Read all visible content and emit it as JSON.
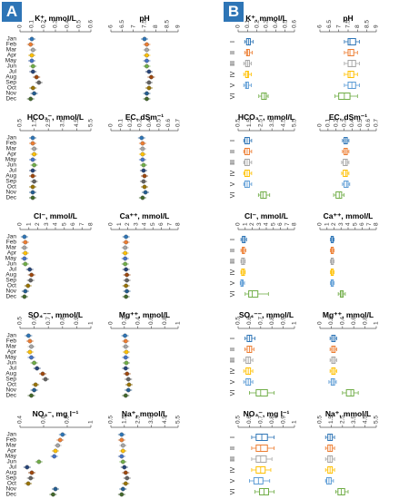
{
  "panel_letters": [
    "A",
    "B"
  ],
  "colors": {
    "accent": "#2e75b6",
    "month_palette": [
      "#2e75b6",
      "#ed7d31",
      "#a5a5a5",
      "#ffc000",
      "#4472c4",
      "#70ad47",
      "#264478",
      "#9e480e",
      "#636363",
      "#997300",
      "#255e91",
      "#43682b"
    ],
    "group_palette": [
      "#2e75b6",
      "#ed7d31",
      "#a5a5a5",
      "#ffc000",
      "#5b9bd5",
      "#70ad47"
    ]
  },
  "chart_data": [
    {
      "panel": "A",
      "type": "scatter",
      "layout": "5x2 grid",
      "row_labels": [
        "Jan",
        "Feb",
        "Mar",
        "Apr",
        "May",
        "Jun",
        "Jul",
        "Aug",
        "Sep",
        "Oct",
        "Nov",
        "Dec"
      ],
      "subplots": [
        {
          "title": "K⁺, mmol/L",
          "ticks": [
            "0",
            "0.1",
            "0.2",
            "0.3",
            "0.4",
            "0.5",
            "0.6"
          ],
          "xlim": [
            0,
            0.6
          ],
          "values": [
            0.1,
            0.09,
            0.11,
            0.1,
            0.1,
            0.11,
            0.11,
            0.14,
            0.16,
            0.11,
            0.12,
            0.09
          ]
        },
        {
          "title": "pH",
          "ticks": [
            "6",
            "6.5",
            "7",
            "7.5",
            "8",
            "8.5",
            "9"
          ],
          "xlim": [
            6,
            9
          ],
          "values": [
            7.5,
            7.6,
            7.6,
            7.6,
            7.6,
            7.6,
            7.7,
            7.8,
            7.7,
            7.7,
            7.6,
            7.6
          ]
        },
        {
          "title": "HCO₃⁻, mmol/L",
          "ticks": [
            "0.5",
            "1.5",
            "2.5",
            "3.5",
            "4.5",
            "5.5"
          ],
          "xlim": [
            0.5,
            5.5
          ],
          "values": [
            1.4,
            1.4,
            1.5,
            1.5,
            1.4,
            1.5,
            1.4,
            1.4,
            1.5,
            1.4,
            1.4,
            1.4
          ]
        },
        {
          "title": "EC, dSm⁻¹",
          "ticks": [
            "0",
            "0.1",
            "0.2",
            "0.3",
            "0.4",
            "0.5",
            "0.6",
            "0.7"
          ],
          "xlim": [
            0,
            0.7
          ],
          "values": [
            0.32,
            0.33,
            0.33,
            0.33,
            0.33,
            0.34,
            0.34,
            0.35,
            0.34,
            0.35,
            0.36,
            0.33
          ]
        },
        {
          "title": "Cl⁻, mmol/L",
          "ticks": [
            "0",
            "1",
            "2",
            "3",
            "4",
            "5",
            "6",
            "7",
            "8"
          ],
          "xlim": [
            0,
            8
          ],
          "values": [
            0.5,
            0.6,
            0.5,
            0.6,
            0.5,
            0.6,
            1.1,
            1.3,
            1.2,
            0.9,
            0.6,
            0.5
          ]
        },
        {
          "title": "Ca⁺⁺, mmol/L",
          "ticks": [
            "0",
            "1",
            "2",
            "3",
            "4",
            "5",
            "6",
            "7",
            "8"
          ],
          "xlim": [
            0,
            8
          ],
          "values": [
            1.8,
            1.8,
            1.7,
            1.7,
            1.7,
            1.7,
            1.8,
            1.9,
            1.9,
            1.8,
            1.9,
            1.8
          ]
        },
        {
          "title": "SO₄⁻⁻, mmol/L",
          "ticks": [
            "0.5",
            "0.6",
            "0.7",
            "0.8",
            "0.9",
            "1"
          ],
          "xlim": [
            0.5,
            1.0
          ],
          "values": [
            0.56,
            0.57,
            0.58,
            0.57,
            0.58,
            0.6,
            0.62,
            0.66,
            0.68,
            0.61,
            0.6,
            0.58
          ]
        },
        {
          "title": "Mg⁺⁺, mmol/L",
          "ticks": [
            "0",
            "0.2",
            "0.4",
            "0.6",
            "0.8",
            "1"
          ],
          "xlim": [
            0,
            1
          ],
          "values": [
            0.21,
            0.22,
            0.22,
            0.23,
            0.22,
            0.23,
            0.22,
            0.24,
            0.26,
            0.27,
            0.26,
            0.22
          ]
        },
        {
          "title": "NO₃⁻, mg l⁻¹",
          "ticks": [
            "0.4",
            "0.6",
            "0.8",
            "1"
          ],
          "xlim": [
            0.4,
            1.0
          ],
          "values": [
            0.76,
            0.74,
            0.72,
            0.7,
            0.69,
            0.56,
            0.46,
            0.5,
            0.49,
            0.47,
            0.7,
            0.68
          ]
        },
        {
          "title": "Na⁺, mmol/L",
          "ticks": [
            "0.5",
            "1.5",
            "2.5",
            "3.5",
            "4.5",
            "5.5"
          ],
          "xlim": [
            0.5,
            5.5
          ],
          "values": [
            1.3,
            1.3,
            1.4,
            1.4,
            1.3,
            1.4,
            1.5,
            1.6,
            1.7,
            1.6,
            1.4,
            1.3
          ]
        }
      ]
    },
    {
      "panel": "B",
      "type": "boxplot",
      "layout": "5x2 grid",
      "row_labels": [
        "I",
        "II",
        "III",
        "IV",
        "V",
        "VI"
      ],
      "subplots": [
        {
          "title": "K⁺, mmol/L",
          "ticks": [
            "0",
            "0.1",
            "0.2",
            "0.3",
            "0.4",
            "0.5",
            "0.6"
          ],
          "xlim": [
            0,
            0.6
          ],
          "boxes": [
            [
              0.07,
              0.09,
              0.11,
              0.13,
              0.16
            ],
            [
              0.07,
              0.09,
              0.1,
              0.12,
              0.15
            ],
            [
              0.06,
              0.08,
              0.1,
              0.12,
              0.14
            ],
            [
              0.06,
              0.08,
              0.1,
              0.11,
              0.14
            ],
            [
              0.06,
              0.08,
              0.09,
              0.11,
              0.14
            ],
            [
              0.22,
              0.25,
              0.28,
              0.3,
              0.32
            ]
          ]
        },
        {
          "title": "pH",
          "ticks": [
            "6",
            "6.5",
            "7",
            "7.5",
            "8",
            "8.5",
            "9"
          ],
          "xlim": [
            6,
            9
          ],
          "boxes": [
            [
              7.3,
              7.5,
              7.6,
              7.9,
              8.1
            ],
            [
              7.3,
              7.5,
              7.6,
              7.8,
              8.0
            ],
            [
              7.3,
              7.5,
              7.7,
              7.9,
              8.1
            ],
            [
              7.3,
              7.5,
              7.6,
              7.8,
              8.0
            ],
            [
              7.3,
              7.5,
              7.7,
              7.9,
              8.1
            ],
            [
              6.8,
              7.0,
              7.3,
              7.6,
              8.0
            ]
          ]
        },
        {
          "title": "HCO₃⁻, mmol/L",
          "ticks": [
            "0.5",
            "1.5",
            "2.5",
            "3.5",
            "4.5",
            "5.5"
          ],
          "xlim": [
            0.5,
            5.5
          ],
          "boxes": [
            [
              1.0,
              1.1,
              1.3,
              1.5,
              1.7
            ],
            [
              1.0,
              1.1,
              1.3,
              1.5,
              1.7
            ],
            [
              1.0,
              1.1,
              1.3,
              1.5,
              1.7
            ],
            [
              1.0,
              1.1,
              1.3,
              1.5,
              1.7
            ],
            [
              1.0,
              1.1,
              1.3,
              1.5,
              1.7
            ],
            [
              2.3,
              2.5,
              2.7,
              3.0,
              3.3
            ]
          ]
        },
        {
          "title": "EC, dSm⁻¹",
          "ticks": [
            "0",
            "0.1",
            "0.2",
            "0.3",
            "0.4",
            "0.5",
            "0.6",
            "0.7"
          ],
          "xlim": [
            0,
            0.7
          ],
          "boxes": [
            [
              0.28,
              0.3,
              0.32,
              0.34,
              0.36
            ],
            [
              0.28,
              0.3,
              0.32,
              0.34,
              0.36
            ],
            [
              0.27,
              0.29,
              0.32,
              0.34,
              0.36
            ],
            [
              0.27,
              0.29,
              0.32,
              0.34,
              0.36
            ],
            [
              0.28,
              0.3,
              0.33,
              0.35,
              0.37
            ],
            [
              0.17,
              0.2,
              0.24,
              0.27,
              0.3
            ]
          ]
        },
        {
          "title": "Cl⁻, mmol/L",
          "ticks": [
            "0",
            "1",
            "2",
            "3",
            "4",
            "5",
            "6",
            "7",
            "8"
          ],
          "xlim": [
            0,
            8
          ],
          "boxes": [
            [
              0.4,
              0.6,
              0.8,
              1.0,
              1.2
            ],
            [
              0.4,
              0.6,
              0.7,
              0.9,
              1.1
            ],
            [
              0.4,
              0.5,
              0.7,
              0.9,
              1.0
            ],
            [
              0.4,
              0.5,
              0.7,
              0.9,
              1.0
            ],
            [
              0.3,
              0.4,
              0.6,
              0.7,
              0.9
            ],
            [
              1.0,
              1.5,
              2.0,
              2.8,
              4.3
            ]
          ]
        },
        {
          "title": "Ca⁺⁺, mmol/L",
          "ticks": [
            "0",
            "1",
            "2",
            "3",
            "4",
            "5",
            "6",
            "7",
            "8"
          ],
          "xlim": [
            0,
            8
          ],
          "boxes": [
            [
              1.5,
              1.6,
              1.8,
              1.9,
              2.0
            ],
            [
              1.5,
              1.6,
              1.7,
              1.9,
              2.0
            ],
            [
              1.5,
              1.6,
              1.7,
              1.9,
              2.0
            ],
            [
              1.5,
              1.6,
              1.7,
              1.9,
              2.0
            ],
            [
              1.5,
              1.6,
              1.7,
              1.9,
              2.0
            ],
            [
              2.6,
              2.9,
              3.1,
              3.3,
              3.6
            ]
          ]
        },
        {
          "title": "SO₄⁻⁻, mmol/L",
          "ticks": [
            "0.5",
            "0.6",
            "0.7",
            "0.8",
            "0.9",
            "1"
          ],
          "xlim": [
            0.5,
            1.0
          ],
          "boxes": [
            [
              0.56,
              0.58,
              0.6,
              0.62,
              0.65
            ],
            [
              0.56,
              0.58,
              0.6,
              0.62,
              0.64
            ],
            [
              0.55,
              0.57,
              0.59,
              0.61,
              0.63
            ],
            [
              0.55,
              0.57,
              0.59,
              0.61,
              0.63
            ],
            [
              0.55,
              0.57,
              0.59,
              0.61,
              0.63
            ],
            [
              0.6,
              0.66,
              0.7,
              0.76,
              0.82
            ]
          ]
        },
        {
          "title": "Mg⁺⁺, mmol/L",
          "ticks": [
            "0",
            "0.2",
            "0.4",
            "0.6",
            "0.8",
            "1"
          ],
          "xlim": [
            0,
            1
          ],
          "boxes": [
            [
              0.18,
              0.21,
              0.24,
              0.27,
              0.3
            ],
            [
              0.18,
              0.21,
              0.24,
              0.27,
              0.3
            ],
            [
              0.18,
              0.21,
              0.24,
              0.27,
              0.3
            ],
            [
              0.18,
              0.21,
              0.24,
              0.27,
              0.3
            ],
            [
              0.16,
              0.2,
              0.23,
              0.26,
              0.29
            ],
            [
              0.4,
              0.47,
              0.55,
              0.6,
              0.68
            ]
          ]
        },
        {
          "title": "NO₃⁻, mg l⁻¹",
          "ticks": [
            "0.5",
            "0.6",
            "0.7",
            "0.8",
            "0.9",
            "1"
          ],
          "xlim": [
            0.5,
            1.0
          ],
          "boxes": [
            [
              0.62,
              0.66,
              0.71,
              0.76,
              0.82
            ],
            [
              0.62,
              0.66,
              0.7,
              0.76,
              0.82
            ],
            [
              0.62,
              0.66,
              0.7,
              0.75,
              0.8
            ],
            [
              0.62,
              0.66,
              0.7,
              0.74,
              0.79
            ],
            [
              0.6,
              0.64,
              0.68,
              0.72,
              0.78
            ],
            [
              0.65,
              0.69,
              0.73,
              0.77,
              0.82
            ]
          ]
        },
        {
          "title": "Na⁺, mmol/L",
          "ticks": [
            "0.5",
            "1.5",
            "2.5",
            "3.5",
            "4.5",
            "5.5"
          ],
          "xlim": [
            0.5,
            5.5
          ],
          "boxes": [
            [
              1.0,
              1.2,
              1.4,
              1.6,
              1.8
            ],
            [
              1.0,
              1.2,
              1.4,
              1.6,
              1.8
            ],
            [
              1.0,
              1.2,
              1.4,
              1.6,
              1.8
            ],
            [
              1.0,
              1.2,
              1.4,
              1.6,
              1.8
            ],
            [
              1.0,
              1.1,
              1.3,
              1.5,
              1.7
            ],
            [
              1.9,
              2.1,
              2.4,
              2.7,
              3.0
            ]
          ]
        }
      ]
    }
  ]
}
